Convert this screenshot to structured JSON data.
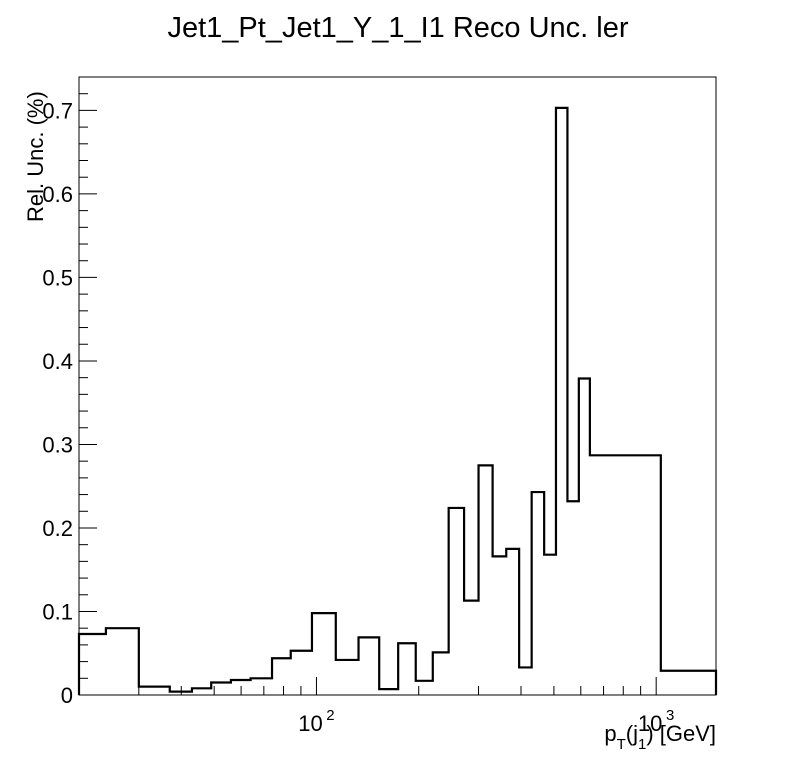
{
  "chart_data": {
    "type": "histogram-step",
    "title": "Jet1_Pt_Jet1_Y_1_I1 Reco Unc. ler",
    "xlabel": {
      "main": "p",
      "sub1": "T",
      "mid": "(j",
      "sub2": "1",
      "end": ") [GeV]"
    },
    "ylabel": "Rel. Unc. (%)",
    "xscale": "log",
    "xlim": [
      20,
      1500
    ],
    "ylim": [
      0,
      0.74
    ],
    "yticks": [
      0,
      0.1,
      0.2,
      0.3,
      0.4,
      0.5,
      0.6,
      0.7
    ],
    "ytick_labels": [
      "0",
      "0.1",
      "0.2",
      "0.3",
      "0.4",
      "0.5",
      "0.6",
      "0.7"
    ],
    "xtick_labels": [
      {
        "base": "10",
        "exp": "2",
        "value": 100
      },
      {
        "base": "10",
        "exp": "3",
        "value": 1000
      }
    ],
    "bin_edges": [
      20,
      24,
      30,
      37,
      43,
      49,
      56,
      64,
      74,
      84,
      97,
      114,
      133,
      153,
      174,
      196,
      220,
      245,
      272,
      300,
      330,
      362,
      395,
      430,
      468,
      507,
      548,
      592,
      638,
      686,
      737,
      790,
      846,
      905,
      967,
      1032,
      1500
    ],
    "values": [
      0.073,
      0.08,
      0.01,
      0.004,
      0.008,
      0.015,
      0.018,
      0.02,
      0.044,
      0.053,
      0.098,
      0.042,
      0.069,
      0.007,
      0.062,
      0.017,
      0.051,
      0.224,
      0.113,
      0.275,
      0.166,
      0.175,
      0.033,
      0.243,
      0.168,
      0.703,
      0.232,
      0.379,
      0.287,
      0.287,
      0.287,
      0.287,
      0.287,
      0.287,
      0.287,
      0.029
    ]
  }
}
